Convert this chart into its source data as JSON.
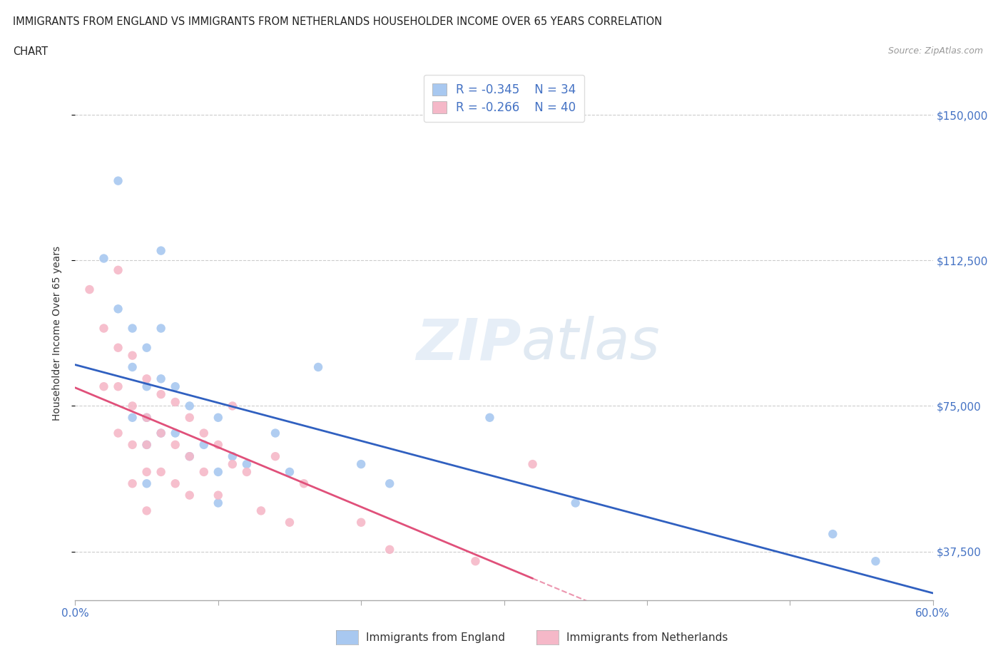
{
  "title_line1": "IMMIGRANTS FROM ENGLAND VS IMMIGRANTS FROM NETHERLANDS HOUSEHOLDER INCOME OVER 65 YEARS CORRELATION",
  "title_line2": "CHART",
  "source_text": "Source: ZipAtlas.com",
  "ylabel": "Householder Income Over 65 years",
  "xlim": [
    0.0,
    0.6
  ],
  "ylim": [
    25000,
    162500
  ],
  "yticks": [
    37500,
    75000,
    112500,
    150000
  ],
  "xticks": [
    0.0,
    0.1,
    0.2,
    0.3,
    0.4,
    0.5,
    0.6
  ],
  "england_color": "#a8c8f0",
  "netherlands_color": "#f5b8c8",
  "england_line_color": "#3060c0",
  "netherlands_line_color": "#e0507a",
  "england_R": -0.345,
  "england_N": 34,
  "netherlands_R": -0.266,
  "netherlands_N": 40,
  "legend_label_england": "Immigrants from England",
  "legend_label_netherlands": "Immigrants from Netherlands",
  "background_color": "#ffffff",
  "watermark_text": "ZIPatlas",
  "england_scatter_x": [
    0.02,
    0.03,
    0.03,
    0.04,
    0.04,
    0.04,
    0.05,
    0.05,
    0.05,
    0.05,
    0.05,
    0.06,
    0.06,
    0.06,
    0.06,
    0.07,
    0.07,
    0.08,
    0.08,
    0.09,
    0.1,
    0.1,
    0.1,
    0.11,
    0.12,
    0.14,
    0.15,
    0.17,
    0.2,
    0.22,
    0.29,
    0.35,
    0.53,
    0.56
  ],
  "england_scatter_y": [
    113000,
    133000,
    100000,
    95000,
    85000,
    72000,
    90000,
    80000,
    72000,
    65000,
    55000,
    115000,
    95000,
    82000,
    68000,
    80000,
    68000,
    75000,
    62000,
    65000,
    72000,
    58000,
    50000,
    62000,
    60000,
    68000,
    58000,
    85000,
    60000,
    55000,
    72000,
    50000,
    42000,
    35000
  ],
  "netherlands_scatter_x": [
    0.01,
    0.02,
    0.02,
    0.03,
    0.03,
    0.03,
    0.03,
    0.04,
    0.04,
    0.04,
    0.04,
    0.05,
    0.05,
    0.05,
    0.05,
    0.05,
    0.06,
    0.06,
    0.06,
    0.07,
    0.07,
    0.07,
    0.08,
    0.08,
    0.08,
    0.09,
    0.09,
    0.1,
    0.1,
    0.11,
    0.11,
    0.12,
    0.13,
    0.14,
    0.15,
    0.16,
    0.2,
    0.22,
    0.28,
    0.32
  ],
  "netherlands_scatter_y": [
    105000,
    95000,
    80000,
    110000,
    90000,
    80000,
    68000,
    88000,
    75000,
    65000,
    55000,
    82000,
    72000,
    65000,
    58000,
    48000,
    78000,
    68000,
    58000,
    76000,
    65000,
    55000,
    72000,
    62000,
    52000,
    68000,
    58000,
    65000,
    52000,
    75000,
    60000,
    58000,
    48000,
    62000,
    45000,
    55000,
    45000,
    38000,
    35000,
    60000
  ],
  "nl_line_solid_end": 0.32,
  "nl_line_dashed_end": 0.6
}
